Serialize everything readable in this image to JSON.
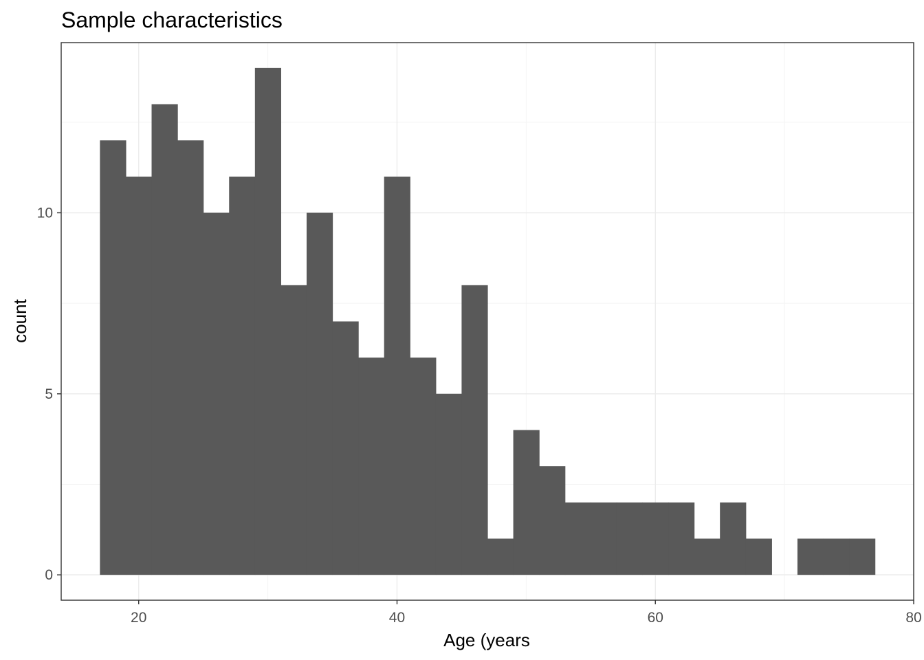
{
  "chart_data": {
    "type": "bar",
    "title": "Sample characteristics",
    "xlabel": "Age (years",
    "ylabel": "count",
    "xlim": [
      14,
      80
    ],
    "ylim": [
      -0.7,
      14.7
    ],
    "grid": true,
    "x_ticks": [
      20,
      40,
      60,
      80
    ],
    "y_ticks": [
      0,
      5,
      10
    ],
    "bin_width": 2,
    "bins": [
      {
        "x": 18,
        "count": 12
      },
      {
        "x": 20,
        "count": 11
      },
      {
        "x": 22,
        "count": 13
      },
      {
        "x": 24,
        "count": 12
      },
      {
        "x": 26,
        "count": 10
      },
      {
        "x": 28,
        "count": 11
      },
      {
        "x": 30,
        "count": 14
      },
      {
        "x": 32,
        "count": 8
      },
      {
        "x": 34,
        "count": 10
      },
      {
        "x": 36,
        "count": 7
      },
      {
        "x": 38,
        "count": 6
      },
      {
        "x": 40,
        "count": 11
      },
      {
        "x": 42,
        "count": 6
      },
      {
        "x": 44,
        "count": 5
      },
      {
        "x": 46,
        "count": 8
      },
      {
        "x": 48,
        "count": 1
      },
      {
        "x": 50,
        "count": 4
      },
      {
        "x": 52,
        "count": 3
      },
      {
        "x": 54,
        "count": 2
      },
      {
        "x": 56,
        "count": 2
      },
      {
        "x": 58,
        "count": 2
      },
      {
        "x": 60,
        "count": 2
      },
      {
        "x": 62,
        "count": 2
      },
      {
        "x": 64,
        "count": 1
      },
      {
        "x": 66,
        "count": 2
      },
      {
        "x": 68,
        "count": 1
      },
      {
        "x": 70,
        "count": 0
      },
      {
        "x": 72,
        "count": 1
      },
      {
        "x": 74,
        "count": 1
      },
      {
        "x": 76,
        "count": 1
      }
    ],
    "colors": {
      "bar": "#595959",
      "grid_major": "#ebebeb",
      "grid_minor": "#f4f4f4",
      "panel_border": "#333333",
      "tick_text": "#4d4d4d"
    }
  }
}
